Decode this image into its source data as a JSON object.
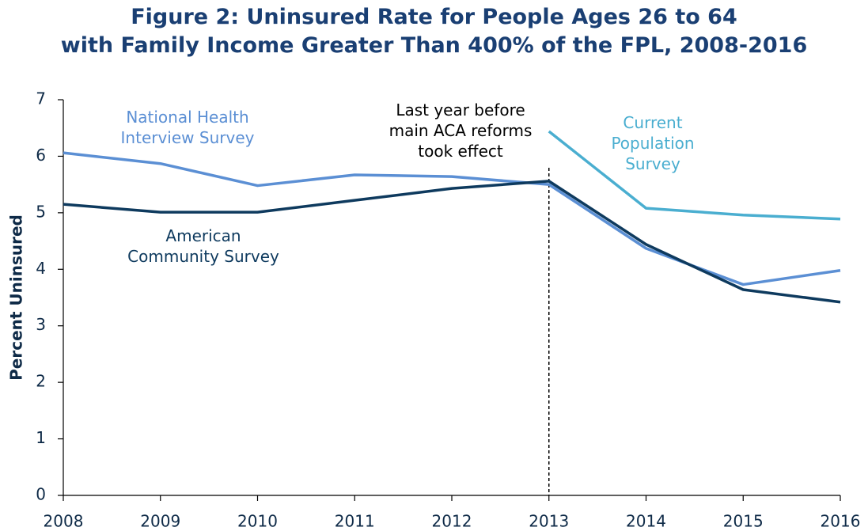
{
  "chart_data": {
    "type": "line",
    "title": "Figure 2: Uninsured Rate for People Ages 26 to 64\nwith Family Income Greater Than 400% of the FPL, 2008-2016",
    "ylabel": "Percent Uninsured",
    "x": [
      2008,
      2009,
      2010,
      2011,
      2012,
      2013,
      2014,
      2015,
      2016
    ],
    "series": [
      {
        "name": "National Health\nInterview Survey",
        "color": "#5b8fd4",
        "values": [
          6.06,
          5.87,
          5.48,
          5.67,
          5.64,
          5.5,
          4.37,
          3.73,
          3.98
        ]
      },
      {
        "name": "American\nCommunity Survey",
        "color": "#0e3a5e",
        "values": [
          5.15,
          5.01,
          5.01,
          5.22,
          5.43,
          5.56,
          4.44,
          3.64,
          3.42
        ]
      },
      {
        "name": "Current\nPopulation\nSurvey",
        "color": "#4aaed0",
        "values": [
          null,
          null,
          null,
          null,
          null,
          6.44,
          5.08,
          4.96,
          4.89
        ]
      }
    ],
    "annotation": {
      "text": "Last year before\nmain ACA reforms\ntook effect",
      "x": 2013
    },
    "xlim": [
      2008,
      2016
    ],
    "xticks": [
      2008,
      2009,
      2010,
      2011,
      2012,
      2013,
      2014,
      2015,
      2016
    ],
    "ylim": [
      0,
      7
    ],
    "yticks": [
      0,
      1,
      2,
      3,
      4,
      5,
      6,
      7
    ]
  }
}
